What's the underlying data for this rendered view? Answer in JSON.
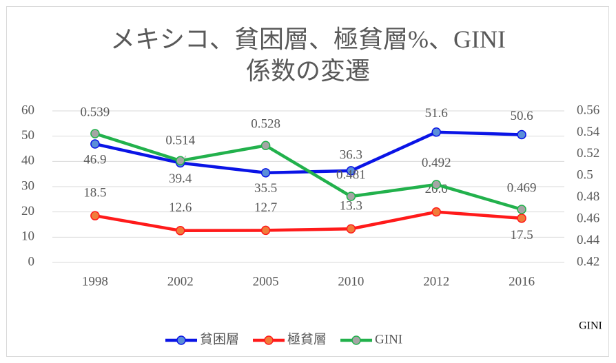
{
  "chart_data": {
    "type": "line",
    "title": "メキシコ、貧困層、極貧層%、GINI係数の変遷",
    "y2_label": "GINI",
    "categories": [
      "1998",
      "2002",
      "2005",
      "2010",
      "2012",
      "2016"
    ],
    "ylim": [
      0,
      60
    ],
    "yticks": [
      0,
      10,
      20,
      30,
      40,
      50,
      60
    ],
    "y2lim": [
      0.42,
      0.56
    ],
    "y2ticks": [
      0.42,
      0.44,
      0.46,
      0.48,
      0.5,
      0.52,
      0.54,
      0.56
    ],
    "grid": true,
    "legend": "bottom",
    "series": [
      {
        "name": "貧困層",
        "color": "#0a14e6",
        "marker_color": "#5b8fd8",
        "values": [
          46.9,
          39.4,
          35.5,
          36.3,
          51.6,
          50.6
        ]
      },
      {
        "name": "極貧層",
        "color": "#ff1a1a",
        "marker_color": "#f07c3a",
        "values": [
          18.5,
          12.6,
          12.7,
          13.3,
          20.0,
          17.5
        ],
        "value_labels": [
          "18.5",
          "12.6",
          "12.7",
          "13.3",
          "20.0",
          "17.5"
        ]
      },
      {
        "name": "GINI",
        "color": "#22b14c",
        "marker_color": "#a5a5a5",
        "axis": "y2",
        "values": [
          0.539,
          0.514,
          0.528,
          0.481,
          0.492,
          0.469
        ]
      }
    ]
  }
}
